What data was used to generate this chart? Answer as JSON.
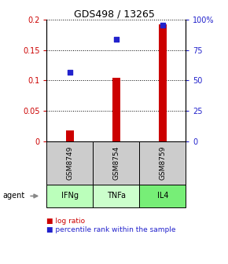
{
  "title": "GDS498 / 13265",
  "samples": [
    "GSM8749",
    "GSM8754",
    "GSM8759"
  ],
  "agents": [
    "IFNg",
    "TNFa",
    "IL4"
  ],
  "log_ratios": [
    0.018,
    0.105,
    0.193
  ],
  "percentile_ranks": [
    0.565,
    0.84,
    0.955
  ],
  "bar_color": "#cc0000",
  "dot_color": "#2222cc",
  "ylim_left": [
    0,
    0.2
  ],
  "ylim_right": [
    0,
    1.0
  ],
  "yticks_left": [
    0,
    0.05,
    0.1,
    0.15,
    0.2
  ],
  "yticks_left_labels": [
    "0",
    "0.05",
    "0.1",
    "0.15",
    "0.2"
  ],
  "yticks_right": [
    0,
    0.25,
    0.5,
    0.75,
    1.0
  ],
  "yticks_right_labels": [
    "0",
    "25",
    "50",
    "75",
    "100%"
  ],
  "sample_box_color": "#cccccc",
  "agent_colors": [
    "#bbffbb",
    "#ccffcc",
    "#77ee77"
  ],
  "bar_width": 0.18,
  "dot_size": 20,
  "title_fontsize": 9,
  "tick_fontsize": 7,
  "label_fontsize": 7,
  "legend_fontsize": 6.5
}
